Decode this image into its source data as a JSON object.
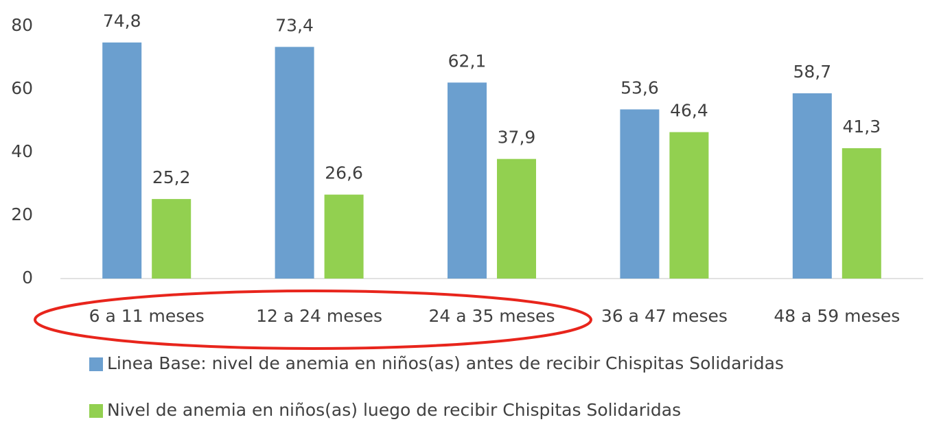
{
  "chart_data": {
    "type": "bar",
    "categories": [
      "6 a 11 meses",
      "12 a 24 meses",
      "24 a 35 meses",
      "36 a 47 meses",
      "48 a 59 meses"
    ],
    "series": [
      {
        "name": "Linea Base: nivel de anemia en niños(as) antes de recibir Chispitas Solidaridas",
        "color": "#6b9fcf",
        "values": [
          74.8,
          73.4,
          62.1,
          53.6,
          58.7
        ],
        "value_labels": [
          "74,8",
          "73,4",
          "62,1",
          "53,6",
          "58,7"
        ]
      },
      {
        "name": "Nivel de anemia en niños(as) luego de recibir Chispitas Solidaridas",
        "color": "#92d050",
        "values": [
          25.2,
          26.6,
          37.9,
          46.4,
          41.3
        ],
        "value_labels": [
          "25,2",
          "26,6",
          "37,9",
          "46,4",
          "41,3"
        ]
      }
    ],
    "ylim": [
      0,
      80
    ],
    "yticks": [
      0,
      20,
      40,
      60,
      80
    ],
    "grid": false
  }
}
